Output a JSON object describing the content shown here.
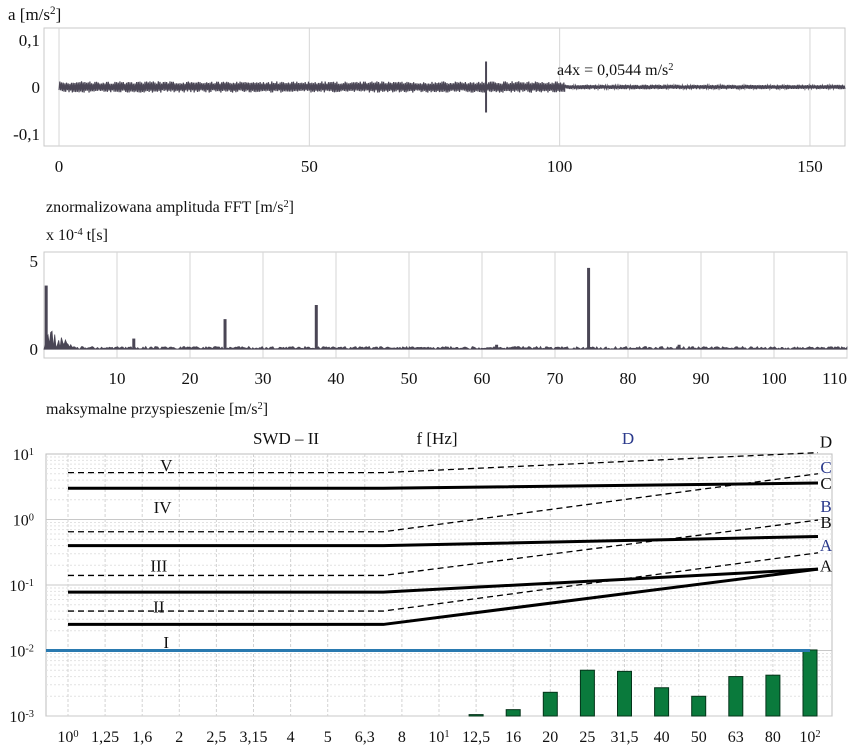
{
  "chart_data": [
    {
      "type": "line",
      "ylabel": "a [m/s²]",
      "xlim": [
        -3,
        157
      ],
      "ylim": [
        -0.125,
        0.125
      ],
      "yticks": [
        {
          "v": 0.1,
          "label": "0,1"
        },
        {
          "v": 0,
          "label": "0"
        },
        {
          "v": -0.1,
          "label": "-0,1"
        }
      ],
      "xticks": [
        {
          "v": 0,
          "label": "0"
        },
        {
          "v": 50,
          "label": "50"
        },
        {
          "v": 100,
          "label": "100"
        },
        {
          "v": 150,
          "label": "150"
        }
      ],
      "annotation": "a4x = 0,0544 m/s²",
      "segments": [
        {
          "x0": 0,
          "x1": 101,
          "amp": 0.012
        },
        {
          "x0": 101,
          "x1": 157,
          "amp": 0.005
        }
      ],
      "spikes": [
        {
          "x": 85.3,
          "ymin": -0.054,
          "ymax": 0.054
        }
      ],
      "color": "#4a4655",
      "grid": true
    },
    {
      "type": "bar",
      "ylabel": "znormalizowana amplituda FFT [m/s²]",
      "scale_label": "x 10⁻⁴ t[s]",
      "xlim": [
        0,
        110
      ],
      "ylim": [
        -0.5,
        5.5
      ],
      "yticks": [
        {
          "v": 5,
          "label": "5"
        },
        {
          "v": 0,
          "label": "0"
        }
      ],
      "xticks": [
        {
          "v": 10,
          "label": "10"
        },
        {
          "v": 20,
          "label": "20"
        },
        {
          "v": 30,
          "label": "30"
        },
        {
          "v": 40,
          "label": "40"
        },
        {
          "v": 50,
          "label": "50"
        },
        {
          "v": 60,
          "label": "60"
        },
        {
          "v": 70,
          "label": "70"
        },
        {
          "v": 80,
          "label": "80"
        },
        {
          "v": 90,
          "label": "90"
        },
        {
          "v": 100,
          "label": "100"
        },
        {
          "v": 110,
          "label": "110"
        }
      ],
      "peaks": [
        {
          "x": 0.3,
          "y": 3.6
        },
        {
          "x": 12.3,
          "y": 0.6
        },
        {
          "x": 24.8,
          "y": 1.7
        },
        {
          "x": 37.3,
          "y": 2.5
        },
        {
          "x": 62.0,
          "y": 0.25
        },
        {
          "x": 74.6,
          "y": 4.6
        },
        {
          "x": 87.0,
          "y": 0.25
        }
      ],
      "noise_level": 0.15,
      "color": "#4a4655",
      "grid": true
    },
    {
      "type": "bar",
      "title": "maksymalne przyspieszenie [m/s²]",
      "label_left": "SWD – II",
      "xlabel": "f [Hz]",
      "yscale": "log",
      "ylim": [
        0.001,
        10
      ],
      "yticks": [
        {
          "v": 10,
          "base": "10",
          "exp": "1"
        },
        {
          "v": 1,
          "base": "10",
          "exp": "0"
        },
        {
          "v": 0.1,
          "base": "10",
          "exp": "-1"
        },
        {
          "v": 0.01,
          "base": "10",
          "exp": "-2"
        },
        {
          "v": 0.001,
          "base": "10",
          "exp": "-3"
        }
      ],
      "categories": [
        "10⁰",
        "1,25",
        "1,6",
        "2",
        "2,5",
        "3,15",
        "4",
        "5",
        "6,3",
        "8",
        "10¹",
        "12,5",
        "16",
        "20",
        "25",
        "31,5",
        "40",
        "50",
        "63",
        "80",
        "10²"
      ],
      "values": [
        0,
        0,
        0,
        0,
        0,
        0,
        0,
        0,
        0,
        0,
        0,
        0.00105,
        0.00125,
        0.0023,
        0.005,
        0.0048,
        0.0027,
        0.002,
        0.004,
        0.0042,
        0.0102
      ],
      "bar_color": "#0a7a3c",
      "limit_line": {
        "y": 0.01,
        "color": "#2a7ab0"
      },
      "knee_index": 8.5,
      "solid_lines": [
        {
          "flat": 3.0,
          "end": 3.6
        },
        {
          "flat": 0.4,
          "end": 0.55
        },
        {
          "flat": 0.078,
          "end": 0.175
        },
        {
          "flat": 0.025,
          "end": 0.175
        }
      ],
      "dashed_lines": [
        {
          "flat": 5.2,
          "end": 10.5
        },
        {
          "flat": 0.65,
          "end": 5.0
        },
        {
          "flat": 0.14,
          "end": 0.98
        },
        {
          "flat": 0.04,
          "end": 0.31
        }
      ],
      "zone_labels": [
        {
          "text": "V",
          "i": 7.5,
          "v": 6.8
        },
        {
          "text": "IV",
          "i": 7.4,
          "v": 1.55
        },
        {
          "text": "III",
          "i": 7.3,
          "v": 0.2
        },
        {
          "text": "II",
          "i": 7.3,
          "v": 0.047
        },
        {
          "text": "I",
          "i": 7.5,
          "v": 0.0135
        }
      ],
      "right_labels": [
        {
          "text": "D",
          "v": 15.5,
          "blue": false
        },
        {
          "text": "C",
          "v": 6.3,
          "blue": true
        },
        {
          "text": "C",
          "v": 3.6,
          "blue": false
        },
        {
          "text": "B",
          "v": 1.6,
          "blue": true
        },
        {
          "text": "B",
          "v": 0.92,
          "blue": false
        },
        {
          "text": "A",
          "v": 0.41,
          "blue": true
        },
        {
          "text": "A",
          "v": 0.2,
          "blue": false
        }
      ],
      "top_blue_label": "D",
      "grid": true
    }
  ]
}
